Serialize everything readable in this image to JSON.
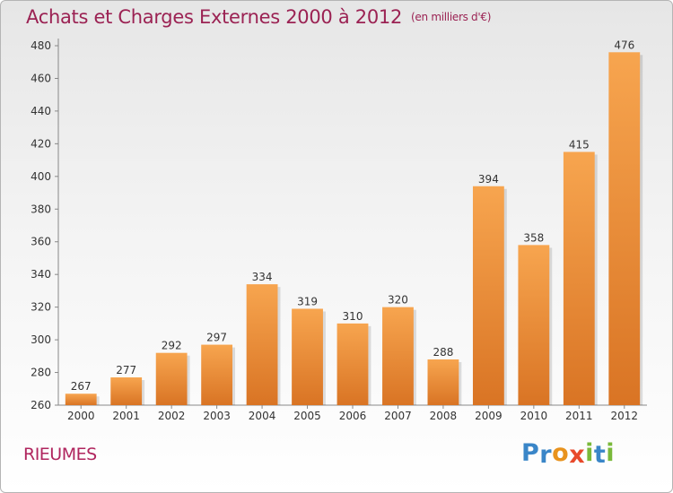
{
  "header": {
    "title": "Achats et Charges Externes 2000 à 2012",
    "subtitle": "(en milliers d'€)"
  },
  "footer": {
    "commune": "RIEUMES",
    "logo_text": "Proxiti"
  },
  "colors": {
    "bar_top": "#f7a54f",
    "bar_bottom": "#d97424",
    "title": "#9b2253",
    "axis_text": "#333333",
    "logo": [
      "#3a86c8",
      "#3a86c8",
      "#e8931e",
      "#e84a2c",
      "#7ab93a",
      "#3a86c8",
      "#7ab93a"
    ]
  },
  "chart_data": {
    "type": "bar",
    "title": "Achats et Charges Externes 2000 à 2012",
    "subtitle": "(en milliers d'€)",
    "categories": [
      "2000",
      "2001",
      "2002",
      "2003",
      "2004",
      "2005",
      "2006",
      "2007",
      "2008",
      "2009",
      "2010",
      "2011",
      "2012"
    ],
    "values": [
      267,
      277,
      292,
      297,
      334,
      319,
      310,
      320,
      288,
      394,
      358,
      415,
      476
    ],
    "ylim": [
      260,
      480
    ],
    "yticks": [
      260,
      280,
      300,
      320,
      340,
      360,
      380,
      400,
      420,
      440,
      460,
      480
    ],
    "grid": false,
    "xlabel": "",
    "ylabel": ""
  }
}
